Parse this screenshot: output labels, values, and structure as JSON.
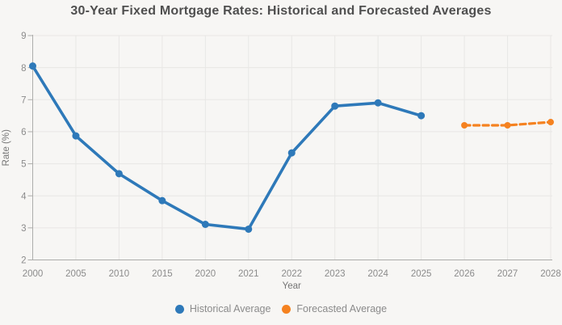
{
  "header": {
    "title": "30-Year Fixed Mortgage Rates: Historical and Forecasted Averages"
  },
  "legend": {
    "items": [
      {
        "label": "Historical Average",
        "color": "#2e79b9"
      },
      {
        "label": "Forecasted Average",
        "color": "#f58220"
      }
    ]
  },
  "chart_data": {
    "type": "line",
    "title": "30-Year Fixed Mortgage Rates: Historical and Forecasted Averages",
    "xlabel": "Year",
    "ylabel": "Rate (%)",
    "categories": [
      "2000",
      "2005",
      "2010",
      "2015",
      "2020",
      "2021",
      "2022",
      "2023",
      "2024",
      "2025",
      "2026",
      "2027",
      "2028"
    ],
    "ylim": [
      2,
      9
    ],
    "y_ticks": [
      2,
      3,
      4,
      5,
      6,
      7,
      8,
      9
    ],
    "grid": true,
    "legend_position": "bottom",
    "series": [
      {
        "name": "Historical Average",
        "color": "#2e79b9",
        "style": "solid",
        "points": [
          {
            "category": "2000",
            "value": 8.05
          },
          {
            "category": "2005",
            "value": 5.87
          },
          {
            "category": "2010",
            "value": 4.69
          },
          {
            "category": "2015",
            "value": 3.85
          },
          {
            "category": "2020",
            "value": 3.11
          },
          {
            "category": "2021",
            "value": 2.96
          },
          {
            "category": "2022",
            "value": 5.34
          },
          {
            "category": "2023",
            "value": 6.8
          },
          {
            "category": "2024",
            "value": 6.9
          },
          {
            "category": "2025",
            "value": 6.5
          }
        ]
      },
      {
        "name": "Forecasted Average",
        "color": "#f58220",
        "style": "dashed",
        "points": [
          {
            "category": "2026",
            "value": 6.2
          },
          {
            "category": "2027",
            "value": 6.2
          },
          {
            "category": "2028",
            "value": 6.3
          }
        ]
      }
    ],
    "colors": {
      "background": "#f7f6f4",
      "grid": "#e8e7e5",
      "axis": "#adadab",
      "tick_label": "#8b8b8b",
      "axis_title": "#757575",
      "title": "#4f4f4f"
    }
  }
}
